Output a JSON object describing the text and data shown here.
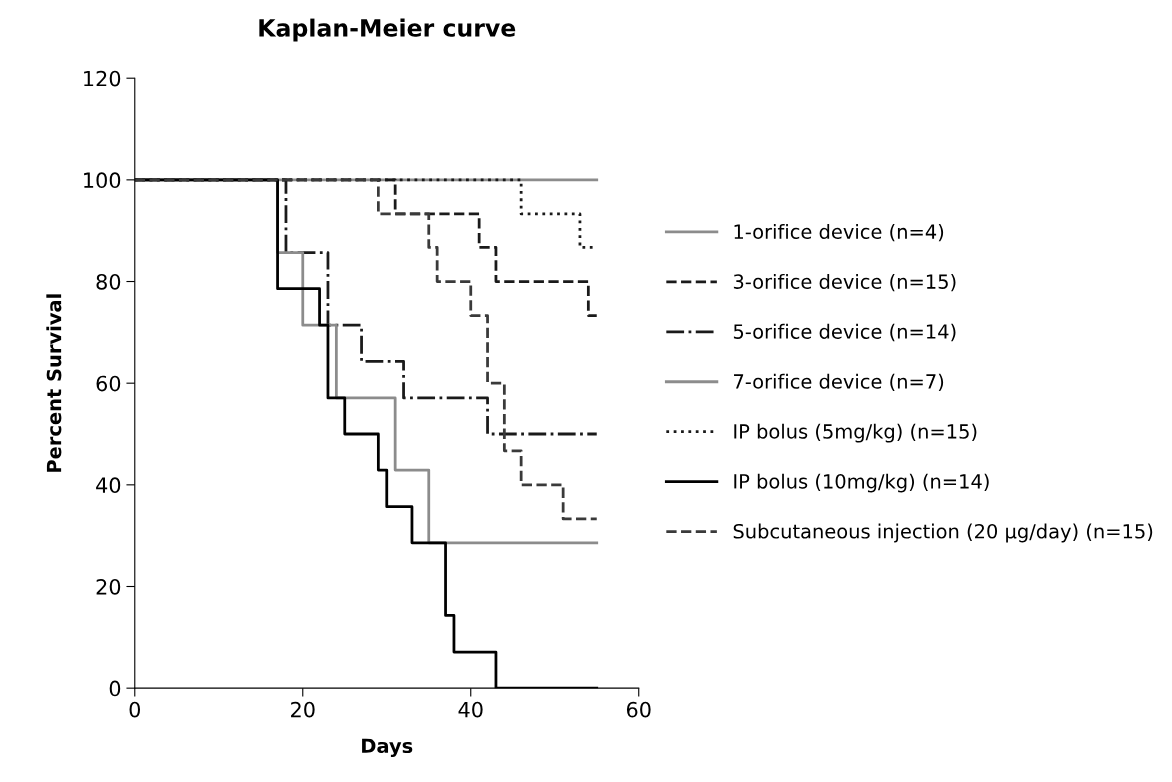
{
  "chart_data": {
    "type": "step",
    "title": "Kaplan-Meier curve",
    "xlabel": "Days",
    "ylabel": "Percent Survival",
    "xlim": [
      0,
      60
    ],
    "xticks": [
      0,
      20,
      40,
      60
    ],
    "ylim": [
      0,
      120
    ],
    "yticks": [
      0,
      20,
      40,
      60,
      80,
      100,
      120
    ],
    "grid": false,
    "legend": "right",
    "marker": "none",
    "series": [
      {
        "name": "1-orifice device (n=4)",
        "color": "#8c8c8c",
        "line_style": "solid",
        "x": [
          0,
          55
        ],
        "values": [
          100,
          100
        ]
      },
      {
        "name": "3-orifice device (n=15)",
        "color": "#1a1a1a",
        "line_style": "dashed",
        "x": [
          0,
          31,
          41,
          43,
          54,
          55
        ],
        "values": [
          100,
          93.3,
          86.7,
          80,
          73.3,
          73.3
        ]
      },
      {
        "name": "5-orifice device (n=14)",
        "color": "#1a1a1a",
        "line_style": "dashdot",
        "x": [
          0,
          18,
          23,
          27,
          32,
          42,
          55
        ],
        "values": [
          100,
          85.7,
          71.4,
          64.3,
          57.1,
          50,
          50
        ]
      },
      {
        "name": "7-orifice device (n=7)",
        "color": "#8c8c8c",
        "line_style": "solid",
        "x": [
          0,
          17,
          20,
          24,
          31,
          35,
          55
        ],
        "values": [
          100,
          85.7,
          71.4,
          57.1,
          42.9,
          28.6,
          28.6
        ]
      },
      {
        "name": "IP bolus (5mg/kg) (n=15)",
        "color": "#1a1a1a",
        "line_style": "dotted",
        "x": [
          0,
          46,
          53,
          55
        ],
        "values": [
          100,
          93.3,
          86.7,
          86.7
        ]
      },
      {
        "name": "IP bolus (10mg/kg) (n=14)",
        "color": "#000000",
        "line_style": "solid",
        "x": [
          0,
          17,
          22,
          23,
          25,
          29,
          30,
          33,
          37,
          38,
          43,
          55
        ],
        "values": [
          100,
          78.6,
          71.4,
          57.1,
          50,
          42.9,
          35.7,
          28.6,
          14.3,
          7.1,
          0,
          0
        ]
      },
      {
        "name": "Subcutaneous injection (20 µg/day) (n=15)",
        "color": "#3a3a3a",
        "line_style": "dashed",
        "x": [
          0,
          29,
          35,
          36,
          40,
          42,
          44,
          46,
          51,
          55
        ],
        "values": [
          100,
          93.3,
          86.7,
          80,
          73.3,
          60,
          46.7,
          40,
          33.3,
          33.3
        ]
      }
    ]
  }
}
